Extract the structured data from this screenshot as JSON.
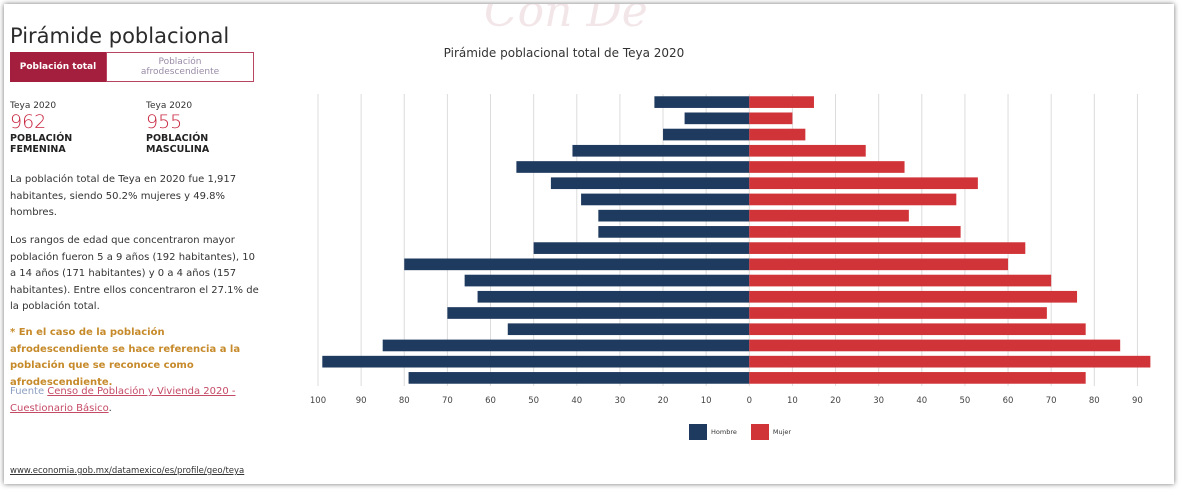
{
  "header": {
    "title": "Pirámide poblacional",
    "tabs": [
      {
        "label": "Población total",
        "active": true
      },
      {
        "label": "Población afrodescendiente",
        "active": false
      }
    ]
  },
  "stats": {
    "female": {
      "label": "Teya 2020",
      "value": "962",
      "caption_line1": "POBLACIÓN",
      "caption_line2": "FEMENINA"
    },
    "male": {
      "label": "Teya 2020",
      "value": "955",
      "caption_line1": "POBLACIÓN",
      "caption_line2": "MASCULINA"
    }
  },
  "text": {
    "p1": "La población total de Teya en 2020 fue 1,917 habitantes, siendo 50.2% mujeres y 49.8% hombres.",
    "p2": "Los rangos de edad que concentraron mayor población fueron 5 a 9 años (192 habitantes), 10 a 14 años (171 habitantes) y 0 a 4 años (157 habitantes). Entre ellos concentraron el 27.1% de la población total.",
    "note": "* En el caso de la población afrodescendiente se hace referencia a la población que se reconoce como afrodescendiente.",
    "source_label": "Fuente",
    "source_link": "Censo de Población y Vivienda 2020 - Cuestionario Básico",
    "source_end": "."
  },
  "footer": {
    "url": "www.economia.gob.mx/datamexico/es/profile/geo/teya"
  },
  "colors": {
    "hombre": "#1f3a5f",
    "mujer": "#d13438",
    "accent": "#a31f3d"
  },
  "watermark": "Con  De",
  "chart_data": {
    "type": "bar",
    "orientation": "horizontal-butterfly",
    "title": "Pirámide poblacional total de Teya 2020",
    "xlim": [
      -100,
      95
    ],
    "x_ticks_left": [
      100,
      90,
      80,
      70,
      60,
      50,
      40,
      30,
      20,
      10,
      0
    ],
    "x_ticks_right": [
      10,
      20,
      30,
      40,
      50,
      60,
      70,
      80,
      90
    ],
    "grid": true,
    "legend": "bottom-center",
    "series": [
      {
        "name": "Hombre",
        "values": [
          22,
          15,
          20,
          41,
          54,
          46,
          39,
          35,
          35,
          50,
          80,
          66,
          63,
          70,
          56,
          85,
          99,
          79
        ]
      },
      {
        "name": "Mujer",
        "values": [
          15,
          10,
          13,
          27,
          36,
          53,
          48,
          37,
          49,
          64,
          60,
          70,
          76,
          69,
          78,
          86,
          93,
          78
        ]
      }
    ]
  }
}
